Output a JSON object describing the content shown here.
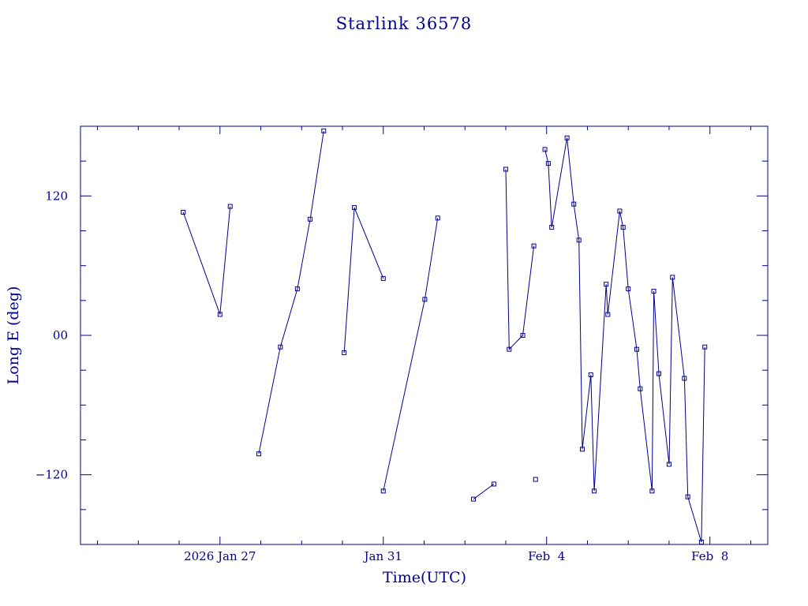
{
  "chart_data": {
    "type": "line",
    "title": "Starlink 36578",
    "xlabel": "Time(UTC)",
    "ylabel": "Long E (deg)",
    "x_unit": "days",
    "xlim": [
      "2026-01-23T14:00",
      "2026-02-09T10:00"
    ],
    "ylim": [
      -180,
      180
    ],
    "x_ticks": [
      {
        "label": "2026 Jan 27",
        "date": "2026-01-27T00:00"
      },
      {
        "label": "Jan 31",
        "date": "2026-01-31T00:00"
      },
      {
        "label": "Feb  4",
        "date": "2026-02-04T00:00"
      },
      {
        "label": "Feb  8",
        "date": "2026-02-08T00:00"
      }
    ],
    "y_ticks": [
      {
        "label": "120",
        "value": 120
      },
      {
        "label": "00",
        "value": 0
      },
      {
        "label": "−120",
        "value": -120
      }
    ],
    "grid": false,
    "color": "#00008b",
    "series": [
      {
        "points": [
          [
            "2026-01-26T02:24",
            106
          ],
          [
            "2026-01-27T00:00",
            18
          ],
          [
            "2026-01-27T06:00",
            111
          ]
        ]
      },
      {
        "points": [
          [
            "2026-01-27T22:48",
            -102
          ],
          [
            "2026-01-28T11:30",
            -10
          ],
          [
            "2026-01-28T21:30",
            40
          ],
          [
            "2026-01-29T05:00",
            100
          ],
          [
            "2026-01-29T13:00",
            176
          ]
        ]
      },
      {
        "points": [
          [
            "2026-01-30T01:00",
            -15
          ],
          [
            "2026-01-30T07:00",
            110
          ],
          [
            "2026-01-31T00:00",
            49
          ]
        ]
      },
      {
        "points": [
          [
            "2026-01-31T00:00",
            -134
          ],
          [
            "2026-02-01T00:24",
            31
          ],
          [
            "2026-02-01T08:00",
            101
          ]
        ]
      },
      {
        "points": [
          [
            "2026-02-02T05:00",
            -141
          ],
          [
            "2026-02-02T17:00",
            -128
          ]
        ]
      },
      {
        "points": [
          [
            "2026-02-03T00:00",
            143
          ],
          [
            "2026-02-03T02:00",
            -12
          ],
          [
            "2026-02-03T10:00",
            0
          ],
          [
            "2026-02-03T16:30",
            77
          ]
        ]
      },
      {
        "points": [
          [
            "2026-02-03T17:30",
            -124
          ]
        ]
      },
      {
        "points": [
          [
            "2026-02-03T23:00",
            160
          ],
          [
            "2026-02-04T01:00",
            148
          ],
          [
            "2026-02-04T03:00",
            93
          ],
          [
            "2026-02-04T12:00",
            170
          ],
          [
            "2026-02-04T16:00",
            113
          ],
          [
            "2026-02-04T19:00",
            82
          ],
          [
            "2026-02-04T21:00",
            -98
          ],
          [
            "2026-02-05T02:00",
            -34
          ],
          [
            "2026-02-05T04:00",
            -134
          ],
          [
            "2026-02-05T11:00",
            44
          ],
          [
            "2026-02-05T12:00",
            18
          ],
          [
            "2026-02-05T19:00",
            107
          ],
          [
            "2026-02-05T21:00",
            93
          ],
          [
            "2026-02-06T00:00",
            40
          ],
          [
            "2026-02-06T05:00",
            -12
          ],
          [
            "2026-02-06T07:00",
            -46
          ],
          [
            "2026-02-06T14:00",
            -134
          ],
          [
            "2026-02-06T15:00",
            38
          ],
          [
            "2026-02-06T18:00",
            -33
          ],
          [
            "2026-02-07T00:00",
            -111
          ],
          [
            "2026-02-07T02:00",
            50
          ],
          [
            "2026-02-07T09:00",
            -37
          ],
          [
            "2026-02-07T11:00",
            -139
          ],
          [
            "2026-02-07T19:00",
            -178
          ],
          [
            "2026-02-07T21:00",
            -10
          ]
        ]
      }
    ]
  }
}
